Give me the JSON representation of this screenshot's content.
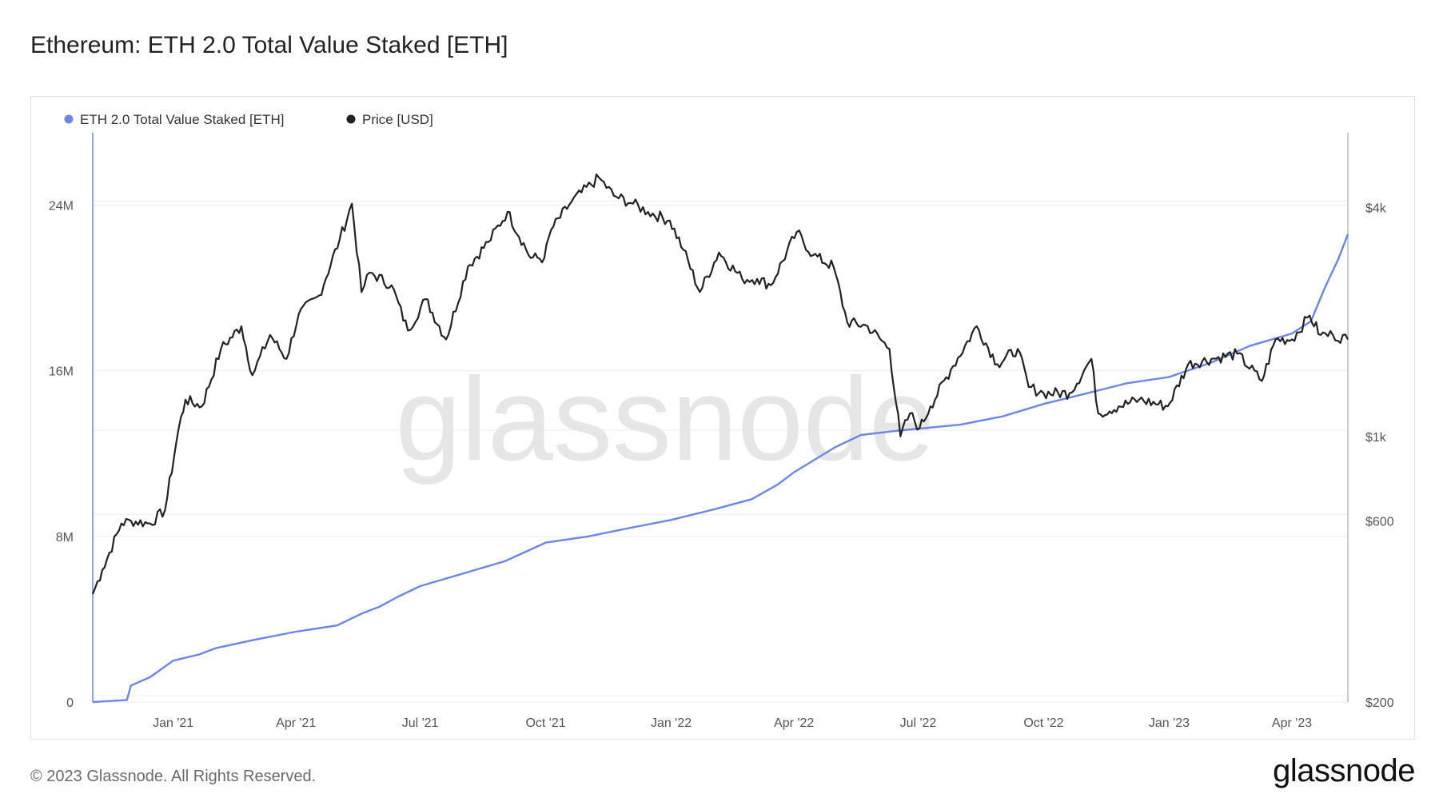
{
  "header": {
    "title": "Ethereum: ETH 2.0 Total Value Staked [ETH]"
  },
  "footer": {
    "copyright": "© 2023 Glassnode. All Rights Reserved.",
    "logo_text": "glassnode"
  },
  "watermark": "glassnode",
  "colors": {
    "staked": "#6b86e8",
    "price": "#222222",
    "grid": "#ececec",
    "axis_text": "#555555",
    "watermark": "#e6e6e6"
  },
  "chart_data": {
    "type": "line",
    "title": "Ethereum: ETH 2.0 Total Value Staked [ETH]",
    "x_ticks": [
      "Jan '21",
      "Apr '21",
      "Jul '21",
      "Oct '21",
      "Jan '22",
      "Apr '22",
      "Jul '22",
      "Oct '22",
      "Jan '23",
      "Apr '23"
    ],
    "x_range": [
      "2020-11-03",
      "2023-05-12"
    ],
    "left_axis": {
      "ticks": [
        {
          "v": 0,
          "label": "0"
        },
        {
          "v": 8000000,
          "label": "8M"
        },
        {
          "v": 16000000,
          "label": "16M"
        },
        {
          "v": 24000000,
          "label": "24M"
        }
      ],
      "range": [
        0,
        27500000
      ],
      "scale": "linear"
    },
    "right_axis": {
      "ticks": [
        {
          "v": 200,
          "label": "$200"
        },
        {
          "v": 600,
          "label": "$600"
        },
        {
          "v": 1000,
          "label": "$1k"
        },
        {
          "v": 4000,
          "label": "$4k"
        }
      ],
      "range": [
        200,
        6300
      ],
      "scale": "log"
    },
    "series": [
      {
        "name": "ETH 2.0 Total Value Staked [ETH]",
        "axis": "left",
        "points": [
          [
            "2020-11-03",
            0
          ],
          [
            "2020-11-28",
            100000
          ],
          [
            "2020-12-01",
            800000
          ],
          [
            "2020-12-15",
            1200000
          ],
          [
            "2021-01-01",
            2000000
          ],
          [
            "2021-01-20",
            2300000
          ],
          [
            "2021-02-01",
            2600000
          ],
          [
            "2021-03-01",
            3000000
          ],
          [
            "2021-04-01",
            3400000
          ],
          [
            "2021-05-01",
            3700000
          ],
          [
            "2021-05-20",
            4300000
          ],
          [
            "2021-06-01",
            4600000
          ],
          [
            "2021-06-15",
            5100000
          ],
          [
            "2021-07-01",
            5600000
          ],
          [
            "2021-08-01",
            6200000
          ],
          [
            "2021-09-01",
            6800000
          ],
          [
            "2021-10-01",
            7700000
          ],
          [
            "2021-11-01",
            8000000
          ],
          [
            "2021-12-01",
            8400000
          ],
          [
            "2022-01-01",
            8800000
          ],
          [
            "2022-02-01",
            9300000
          ],
          [
            "2022-03-01",
            9800000
          ],
          [
            "2022-03-20",
            10500000
          ],
          [
            "2022-04-01",
            11100000
          ],
          [
            "2022-05-01",
            12300000
          ],
          [
            "2022-05-20",
            12900000
          ],
          [
            "2022-06-15",
            13100000
          ],
          [
            "2022-07-01",
            13200000
          ],
          [
            "2022-08-01",
            13400000
          ],
          [
            "2022-09-01",
            13800000
          ],
          [
            "2022-10-01",
            14400000
          ],
          [
            "2022-11-01",
            14900000
          ],
          [
            "2022-12-01",
            15400000
          ],
          [
            "2023-01-01",
            15700000
          ],
          [
            "2023-02-01",
            16400000
          ],
          [
            "2023-03-01",
            17200000
          ],
          [
            "2023-04-01",
            17800000
          ],
          [
            "2023-04-15",
            18400000
          ],
          [
            "2023-04-25",
            20000000
          ],
          [
            "2023-05-05",
            21400000
          ],
          [
            "2023-05-12",
            22600000
          ]
        ]
      },
      {
        "name": "Price [USD]",
        "axis": "right",
        "points": [
          [
            "2020-11-03",
            385
          ],
          [
            "2020-11-10",
            445
          ],
          [
            "2020-11-24",
            590
          ],
          [
            "2020-12-01",
            600
          ],
          [
            "2020-12-15",
            590
          ],
          [
            "2020-12-26",
            640
          ],
          [
            "2021-01-05",
            1050
          ],
          [
            "2021-01-10",
            1250
          ],
          [
            "2021-01-22",
            1200
          ],
          [
            "2021-02-05",
            1700
          ],
          [
            "2021-02-20",
            1950
          ],
          [
            "2021-02-28",
            1450
          ],
          [
            "2021-03-13",
            1850
          ],
          [
            "2021-03-25",
            1600
          ],
          [
            "2021-04-03",
            2100
          ],
          [
            "2021-04-18",
            2350
          ],
          [
            "2021-05-03",
            3300
          ],
          [
            "2021-05-12",
            4100
          ],
          [
            "2021-05-19",
            2400
          ],
          [
            "2021-05-25",
            2700
          ],
          [
            "2021-06-10",
            2500
          ],
          [
            "2021-06-22",
            1900
          ],
          [
            "2021-07-05",
            2300
          ],
          [
            "2021-07-20",
            1800
          ],
          [
            "2021-08-05",
            2800
          ],
          [
            "2021-08-20",
            3250
          ],
          [
            "2021-09-03",
            3900
          ],
          [
            "2021-09-20",
            2950
          ],
          [
            "2021-09-30",
            2950
          ],
          [
            "2021-10-05",
            3500
          ],
          [
            "2021-10-20",
            4150
          ],
          [
            "2021-11-09",
            4800
          ],
          [
            "2021-11-20",
            4300
          ],
          [
            "2021-12-04",
            4100
          ],
          [
            "2021-12-15",
            3900
          ],
          [
            "2021-12-31",
            3700
          ],
          [
            "2022-01-10",
            3100
          ],
          [
            "2022-01-22",
            2400
          ],
          [
            "2022-02-05",
            3050
          ],
          [
            "2022-02-22",
            2600
          ],
          [
            "2022-03-05",
            2600
          ],
          [
            "2022-03-15",
            2500
          ],
          [
            "2022-04-03",
            3450
          ],
          [
            "2022-04-15",
            3000
          ],
          [
            "2022-04-30",
            2800
          ],
          [
            "2022-05-10",
            2000
          ],
          [
            "2022-05-25",
            1950
          ],
          [
            "2022-06-10",
            1700
          ],
          [
            "2022-06-18",
            1000
          ],
          [
            "2022-06-25",
            1150
          ],
          [
            "2022-07-02",
            1050
          ],
          [
            "2022-07-10",
            1200
          ],
          [
            "2022-07-25",
            1500
          ],
          [
            "2022-08-13",
            1950
          ],
          [
            "2022-08-28",
            1550
          ],
          [
            "2022-09-12",
            1700
          ],
          [
            "2022-09-20",
            1350
          ],
          [
            "2022-10-01",
            1300
          ],
          [
            "2022-10-20",
            1300
          ],
          [
            "2022-11-05",
            1600
          ],
          [
            "2022-11-10",
            1150
          ],
          [
            "2022-11-25",
            1200
          ],
          [
            "2022-12-10",
            1250
          ],
          [
            "2022-12-31",
            1200
          ],
          [
            "2023-01-15",
            1550
          ],
          [
            "2023-02-01",
            1600
          ],
          [
            "2023-02-20",
            1650
          ],
          [
            "2023-03-10",
            1400
          ],
          [
            "2023-03-20",
            1800
          ],
          [
            "2023-04-01",
            1800
          ],
          [
            "2023-04-14",
            2080
          ],
          [
            "2023-04-22",
            1850
          ],
          [
            "2023-05-01",
            1850
          ],
          [
            "2023-05-12",
            1800
          ]
        ]
      }
    ],
    "legend": "top-left"
  }
}
